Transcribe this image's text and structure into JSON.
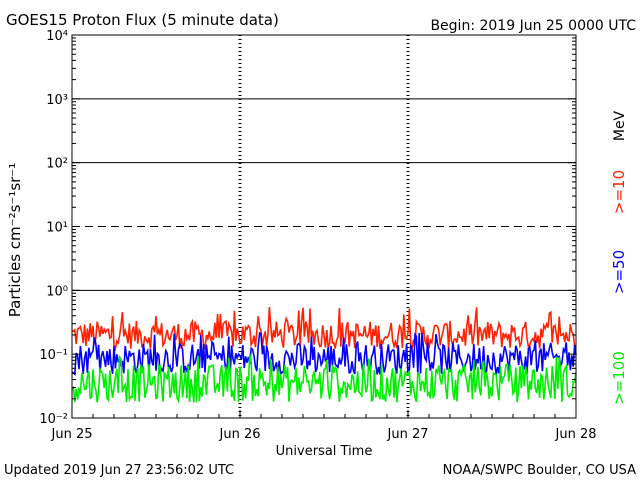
{
  "chart_data": {
    "type": "line",
    "title": "GOES15 Proton Flux (5 minute data)",
    "begin_label": "Begin: 2019 Jun 25 0000 UTC",
    "xlabel": "Universal Time",
    "ylabel": "Particles cm⁻²s⁻¹sr⁻¹",
    "unit_label": "MeV",
    "footer_left": "Updated 2019 Jun 27 23:56:02 UTC",
    "footer_right": "NOAA/SWPC Boulder, CO USA",
    "y_scale": "log",
    "ylim": [
      0.01,
      10000
    ],
    "x_days": [
      "Jun 25",
      "Jun 26",
      "Jun 27",
      "Jun 28"
    ],
    "y_ticks": [
      {
        "value": 0.01,
        "label": "10⁻²"
      },
      {
        "value": 0.1,
        "label": "10⁻¹"
      },
      {
        "value": 1,
        "label": "10⁰"
      },
      {
        "value": 10,
        "label": "10¹"
      },
      {
        "value": 100,
        "label": "10²"
      },
      {
        "value": 1000,
        "label": "10³"
      },
      {
        "value": 10000,
        "label": "10⁴"
      }
    ],
    "threshold_lines": [
      {
        "value": 1,
        "style": "solid"
      },
      {
        "value": 10,
        "style": "dashed"
      },
      {
        "value": 100,
        "style": "solid"
      },
      {
        "value": 1000,
        "style": "solid"
      }
    ],
    "series": [
      {
        "name": ">=10",
        "color": "#ff2200",
        "base": 0.2,
        "spread": 0.22,
        "spike": 0.55
      },
      {
        "name": ">=50",
        "color": "#0000ff",
        "base": 0.085,
        "spread": 0.25,
        "spike": 0.22
      },
      {
        "name": ">=100",
        "color": "#00ee00",
        "base": 0.035,
        "spread": 0.3,
        "spike": 0.1
      }
    ]
  }
}
